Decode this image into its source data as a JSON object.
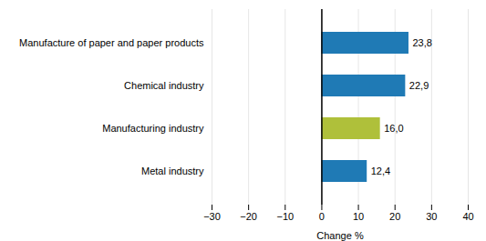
{
  "chart_data": {
    "type": "bar",
    "orientation": "horizontal",
    "categories": [
      "Metal industry",
      "Manufacturing industry",
      "Chemical industry",
      "Manufacture of paper and paper products"
    ],
    "values": [
      12.4,
      16.0,
      22.9,
      23.8
    ],
    "value_labels": [
      "12,4",
      "16,0",
      "22,9",
      "23,8"
    ],
    "data_labels": true,
    "colors": [
      "#1f7ab5",
      "#afc03a",
      "#1f7ab5",
      "#1f7ab5"
    ],
    "xlabel": "Change %",
    "xlim": [
      -30,
      40
    ],
    "xticks": [
      -30,
      -20,
      -10,
      0,
      10,
      20,
      30,
      40
    ],
    "grid": true
  }
}
